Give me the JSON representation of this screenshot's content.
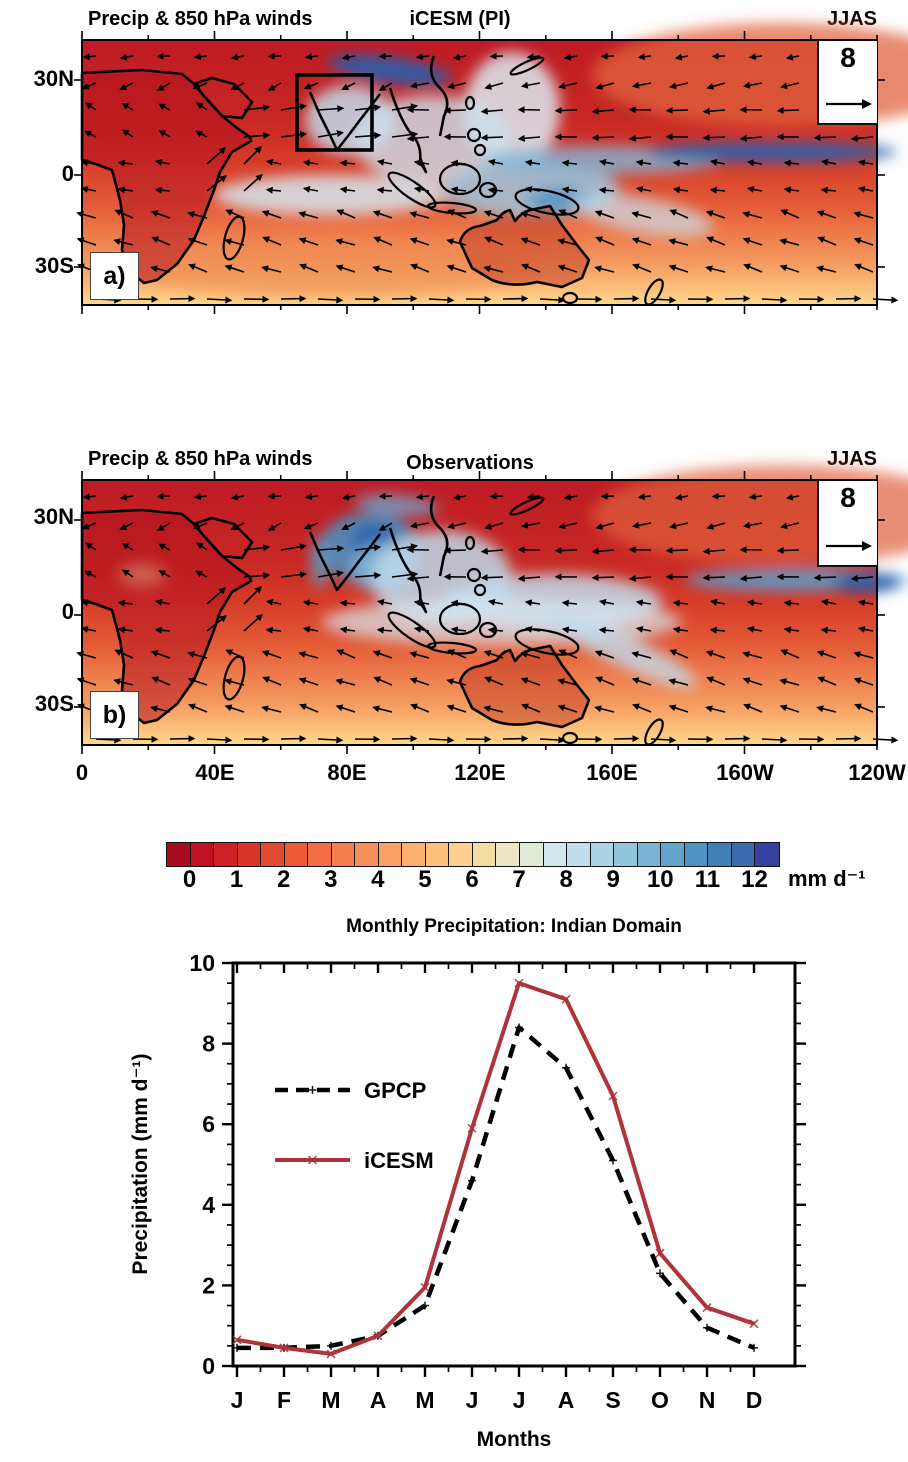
{
  "panel_a": {
    "panel_label": "a)",
    "title_left": "Precip & 850 hPa winds",
    "title_center": "iCESM (PI)",
    "title_right": "JJAS",
    "wind_reference": "8",
    "region_box": "Indian domain"
  },
  "panel_b": {
    "panel_label": "b)",
    "title_left": "Precip & 850 hPa winds",
    "title_center": "Observations",
    "title_right": "JJAS",
    "wind_reference": "8"
  },
  "axes": {
    "lat_ticks": [
      "30N",
      "0",
      "30S"
    ],
    "lon_ticks": [
      "0",
      "40E",
      "80E",
      "120E",
      "160E",
      "160W",
      "120W"
    ]
  },
  "colorbar": {
    "tick_labels": [
      "0",
      "1",
      "2",
      "3",
      "4",
      "5",
      "6",
      "7",
      "8",
      "9",
      "10",
      "11",
      "12"
    ],
    "unit": "mm d⁻¹",
    "colors": [
      "#A80C1E",
      "#BE1126",
      "#CE2127",
      "#DA3428",
      "#E44931",
      "#EC5A3A",
      "#F26C45",
      "#F67E50",
      "#F9905B",
      "#FBA066",
      "#FCB071",
      "#FDC07F",
      "#FCD090",
      "#F4DEA6",
      "#ECE6C4",
      "#DFEAD8",
      "#D2E7EC",
      "#C2DEEC",
      "#ACD3E5",
      "#93C5DD",
      "#7AB5D4",
      "#63A4CA",
      "#4E93C1",
      "#4080B6",
      "#3A6BAD",
      "#35409E"
    ]
  },
  "chart_data": {
    "type": "line",
    "title": "Monthly Precipitation: Indian Domain",
    "xlabel": "Months",
    "ylabel": "Precipitation (mm d⁻¹)",
    "categories": [
      "J",
      "F",
      "M",
      "A",
      "M",
      "J",
      "J",
      "A",
      "S",
      "O",
      "N",
      "D"
    ],
    "ylim": [
      0,
      10
    ],
    "yticks": [
      0,
      2,
      4,
      6,
      8,
      10
    ],
    "legend_position": "upper-left-inside",
    "series": [
      {
        "name": "GPCP",
        "color": "#000000",
        "style": "dashed",
        "marker": "+",
        "values": [
          0.45,
          0.45,
          0.5,
          0.75,
          1.5,
          4.6,
          8.4,
          7.4,
          5.1,
          2.3,
          0.95,
          0.45
        ]
      },
      {
        "name": "iCESM",
        "color": "#AE3437",
        "style": "solid",
        "marker": "x",
        "values": [
          0.65,
          0.45,
          0.3,
          0.75,
          1.95,
          5.9,
          9.5,
          9.1,
          6.7,
          2.8,
          1.45,
          1.05
        ]
      }
    ]
  },
  "colors": {
    "accent_red": "#AE3437",
    "map_dark_red": "#BE1B24",
    "map_dark_blue": "#2B5FAC"
  }
}
